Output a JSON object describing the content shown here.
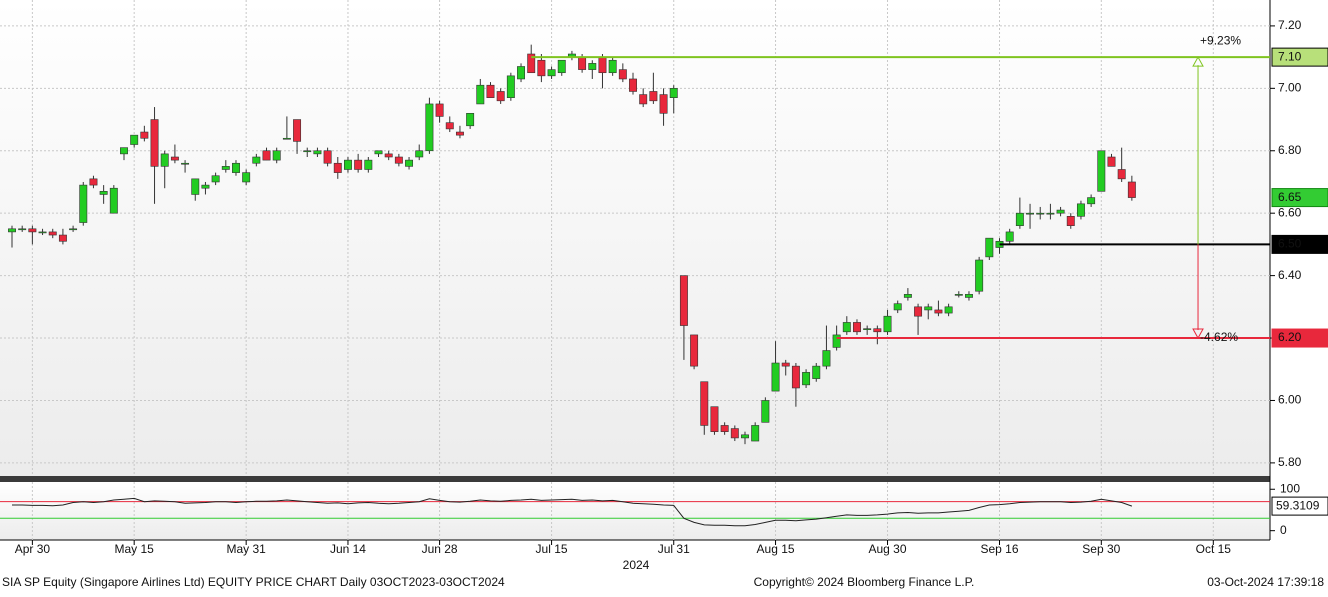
{
  "chart_data": {
    "type": "candlestick",
    "up_color": "#22cc22",
    "down_color": "#e8283c",
    "ylim": [
      5.758,
      7.283
    ],
    "yticks": [
      {
        "value": 5.8,
        "label": "5.80"
      },
      {
        "value": 6.0,
        "label": "6.00"
      },
      {
        "value": 6.2,
        "label": "6.20"
      },
      {
        "value": 6.4,
        "label": "6.40"
      },
      {
        "value": 6.6,
        "label": "6.60"
      },
      {
        "value": 6.8,
        "label": "6.80"
      },
      {
        "value": 7.0,
        "label": "7.00"
      },
      {
        "value": 7.2,
        "label": "7.20"
      }
    ],
    "xlim": [
      -1.18,
      123.57
    ],
    "xticks": [
      {
        "value": 2,
        "label": "Apr 30"
      },
      {
        "value": 12,
        "label": "May 15"
      },
      {
        "value": 23,
        "label": "May 31"
      },
      {
        "value": 33,
        "label": "Jun 14"
      },
      {
        "value": 42,
        "label": "Jun 28"
      },
      {
        "value": 53,
        "label": "Jul 15"
      },
      {
        "value": 65,
        "label": "Jul 31"
      },
      {
        "value": 75,
        "label": "Aug 15"
      },
      {
        "value": 86,
        "label": "Aug 30"
      },
      {
        "value": 97,
        "label": "Sep 16"
      },
      {
        "value": 107,
        "label": "Sep 30"
      },
      {
        "value": 118,
        "label": "Oct 15"
      }
    ],
    "year_label": "2024",
    "grid": true,
    "candles": [
      {
        "open": 6.54,
        "high": 6.56,
        "low": 6.49,
        "close": 6.55
      },
      {
        "open": 6.55,
        "high": 6.56,
        "low": 6.54,
        "close": 6.55
      },
      {
        "open": 6.55,
        "high": 6.56,
        "low": 6.5,
        "close": 6.54
      },
      {
        "open": 6.54,
        "high": 6.55,
        "low": 6.53,
        "close": 6.54
      },
      {
        "open": 6.54,
        "high": 6.55,
        "low": 6.52,
        "close": 6.53
      },
      {
        "open": 6.53,
        "high": 6.55,
        "low": 6.5,
        "close": 6.51
      },
      {
        "open": 6.55,
        "high": 6.56,
        "low": 6.54,
        "close": 6.55
      },
      {
        "open": 6.57,
        "high": 6.7,
        "low": 6.56,
        "close": 6.69
      },
      {
        "open": 6.71,
        "high": 6.72,
        "low": 6.68,
        "close": 6.69
      },
      {
        "open": 6.66,
        "high": 6.69,
        "low": 6.63,
        "close": 6.67
      },
      {
        "open": 6.6,
        "high": 6.69,
        "low": 6.6,
        "close": 6.68
      },
      {
        "open": 6.79,
        "high": 6.81,
        "low": 6.77,
        "close": 6.81
      },
      {
        "open": 6.82,
        "high": 6.85,
        "low": 6.81,
        "close": 6.85
      },
      {
        "open": 6.86,
        "high": 6.88,
        "low": 6.83,
        "close": 6.84
      },
      {
        "open": 6.9,
        "high": 6.94,
        "low": 6.63,
        "close": 6.75
      },
      {
        "open": 6.75,
        "high": 6.8,
        "low": 6.68,
        "close": 6.79
      },
      {
        "open": 6.78,
        "high": 6.82,
        "low": 6.76,
        "close": 6.77
      },
      {
        "open": 6.76,
        "high": 6.77,
        "low": 6.73,
        "close": 6.76
      },
      {
        "open": 6.66,
        "high": 6.71,
        "low": 6.64,
        "close": 6.71
      },
      {
        "open": 6.68,
        "high": 6.7,
        "low": 6.66,
        "close": 6.69
      },
      {
        "open": 6.7,
        "high": 6.73,
        "low": 6.69,
        "close": 6.72
      },
      {
        "open": 6.74,
        "high": 6.77,
        "low": 6.73,
        "close": 6.75
      },
      {
        "open": 6.73,
        "high": 6.77,
        "low": 6.72,
        "close": 6.76
      },
      {
        "open": 6.7,
        "high": 6.74,
        "low": 6.69,
        "close": 6.73
      },
      {
        "open": 6.76,
        "high": 6.79,
        "low": 6.75,
        "close": 6.78
      },
      {
        "open": 6.8,
        "high": 6.81,
        "low": 6.77,
        "close": 6.77
      },
      {
        "open": 6.77,
        "high": 6.81,
        "low": 6.76,
        "close": 6.8
      },
      {
        "open": 6.84,
        "high": 6.91,
        "low": 6.84,
        "close": 6.84
      },
      {
        "open": 6.9,
        "high": 6.9,
        "low": 6.79,
        "close": 6.83
      },
      {
        "open": 6.8,
        "high": 6.81,
        "low": 6.78,
        "close": 6.8
      },
      {
        "open": 6.79,
        "high": 6.81,
        "low": 6.78,
        "close": 6.8
      },
      {
        "open": 6.8,
        "high": 6.81,
        "low": 6.75,
        "close": 6.76
      },
      {
        "open": 6.76,
        "high": 6.78,
        "low": 6.71,
        "close": 6.73
      },
      {
        "open": 6.74,
        "high": 6.78,
        "low": 6.73,
        "close": 6.77
      },
      {
        "open": 6.77,
        "high": 6.79,
        "low": 6.73,
        "close": 6.74
      },
      {
        "open": 6.74,
        "high": 6.78,
        "low": 6.73,
        "close": 6.77
      },
      {
        "open": 6.79,
        "high": 6.8,
        "low": 6.78,
        "close": 6.8
      },
      {
        "open": 6.79,
        "high": 6.8,
        "low": 6.77,
        "close": 6.78
      },
      {
        "open": 6.78,
        "high": 6.79,
        "low": 6.75,
        "close": 6.76
      },
      {
        "open": 6.75,
        "high": 6.78,
        "low": 6.74,
        "close": 6.77
      },
      {
        "open": 6.78,
        "high": 6.82,
        "low": 6.77,
        "close": 6.8
      },
      {
        "open": 6.8,
        "high": 6.97,
        "low": 6.79,
        "close": 6.95
      },
      {
        "open": 6.95,
        "high": 6.96,
        "low": 6.89,
        "close": 6.91
      },
      {
        "open": 6.89,
        "high": 6.91,
        "low": 6.86,
        "close": 6.87
      },
      {
        "open": 6.86,
        "high": 6.88,
        "low": 6.84,
        "close": 6.85
      },
      {
        "open": 6.88,
        "high": 6.92,
        "low": 6.87,
        "close": 6.92
      },
      {
        "open": 6.95,
        "high": 7.03,
        "low": 6.95,
        "close": 7.01
      },
      {
        "open": 7.01,
        "high": 7.02,
        "low": 6.97,
        "close": 6.97
      },
      {
        "open": 6.99,
        "high": 7.0,
        "low": 6.95,
        "close": 6.96
      },
      {
        "open": 6.97,
        "high": 7.05,
        "low": 6.96,
        "close": 7.04
      },
      {
        "open": 7.03,
        "high": 7.08,
        "low": 7.02,
        "close": 7.07
      },
      {
        "open": 7.11,
        "high": 7.14,
        "low": 7.05,
        "close": 7.05
      },
      {
        "open": 7.09,
        "high": 7.11,
        "low": 7.02,
        "close": 7.04
      },
      {
        "open": 7.04,
        "high": 7.07,
        "low": 7.03,
        "close": 7.06
      },
      {
        "open": 7.05,
        "high": 7.09,
        "low": 7.04,
        "close": 7.09
      },
      {
        "open": 7.1,
        "high": 7.12,
        "low": 7.09,
        "close": 7.11
      },
      {
        "open": 7.1,
        "high": 7.11,
        "low": 7.05,
        "close": 7.06
      },
      {
        "open": 7.06,
        "high": 7.09,
        "low": 7.03,
        "close": 7.08
      },
      {
        "open": 7.1,
        "high": 7.11,
        "low": 7.0,
        "close": 7.05
      },
      {
        "open": 7.05,
        "high": 7.1,
        "low": 7.04,
        "close": 7.09
      },
      {
        "open": 7.06,
        "high": 7.08,
        "low": 7.02,
        "close": 7.03
      },
      {
        "open": 7.03,
        "high": 7.05,
        "low": 6.98,
        "close": 6.99
      },
      {
        "open": 6.98,
        "high": 7.0,
        "low": 6.94,
        "close": 6.95
      },
      {
        "open": 6.99,
        "high": 7.05,
        "low": 6.95,
        "close": 6.96
      },
      {
        "open": 6.98,
        "high": 7.0,
        "low": 6.88,
        "close": 6.92
      },
      {
        "open": 6.97,
        "high": 7.01,
        "low": 6.92,
        "close": 7.0
      },
      {
        "open": 6.4,
        "high": 6.4,
        "low": 6.13,
        "close": 6.24
      },
      {
        "open": 6.21,
        "high": 6.21,
        "low": 6.1,
        "close": 6.11
      },
      {
        "open": 6.06,
        "high": 6.06,
        "low": 5.89,
        "close": 5.92
      },
      {
        "open": 5.98,
        "high": 5.98,
        "low": 5.89,
        "close": 5.9
      },
      {
        "open": 5.92,
        "high": 5.93,
        "low": 5.89,
        "close": 5.9
      },
      {
        "open": 5.91,
        "high": 5.92,
        "low": 5.87,
        "close": 5.88
      },
      {
        "open": 5.88,
        "high": 5.9,
        "low": 5.86,
        "close": 5.89
      },
      {
        "open": 5.87,
        "high": 5.93,
        "low": 5.87,
        "close": 5.92
      },
      {
        "open": 5.93,
        "high": 6.01,
        "low": 5.93,
        "close": 6.0
      },
      {
        "open": 6.03,
        "high": 6.19,
        "low": 6.03,
        "close": 6.12
      },
      {
        "open": 6.12,
        "high": 6.13,
        "low": 6.08,
        "close": 6.11
      },
      {
        "open": 6.11,
        "high": 6.12,
        "low": 5.98,
        "close": 6.04
      },
      {
        "open": 6.05,
        "high": 6.1,
        "low": 6.04,
        "close": 6.09
      },
      {
        "open": 6.07,
        "high": 6.12,
        "low": 6.06,
        "close": 6.11
      },
      {
        "open": 6.11,
        "high": 6.24,
        "low": 6.1,
        "close": 6.16
      },
      {
        "open": 6.17,
        "high": 6.24,
        "low": 6.16,
        "close": 6.21
      },
      {
        "open": 6.22,
        "high": 6.27,
        "low": 6.21,
        "close": 6.25
      },
      {
        "open": 6.25,
        "high": 6.26,
        "low": 6.21,
        "close": 6.22
      },
      {
        "open": 6.23,
        "high": 6.24,
        "low": 6.21,
        "close": 6.23
      },
      {
        "open": 6.23,
        "high": 6.24,
        "low": 6.18,
        "close": 6.22
      },
      {
        "open": 6.22,
        "high": 6.29,
        "low": 6.21,
        "close": 6.27
      },
      {
        "open": 6.29,
        "high": 6.32,
        "low": 6.28,
        "close": 6.31
      },
      {
        "open": 6.33,
        "high": 6.36,
        "low": 6.32,
        "close": 6.34
      },
      {
        "open": 6.3,
        "high": 6.31,
        "low": 6.21,
        "close": 6.27
      },
      {
        "open": 6.29,
        "high": 6.31,
        "low": 6.26,
        "close": 6.3
      },
      {
        "open": 6.29,
        "high": 6.32,
        "low": 6.27,
        "close": 6.28
      },
      {
        "open": 6.28,
        "high": 6.31,
        "low": 6.27,
        "close": 6.3
      },
      {
        "open": 6.34,
        "high": 6.35,
        "low": 6.33,
        "close": 6.34
      },
      {
        "open": 6.33,
        "high": 6.35,
        "low": 6.32,
        "close": 6.34
      },
      {
        "open": 6.35,
        "high": 6.46,
        "low": 6.34,
        "close": 6.45
      },
      {
        "open": 6.46,
        "high": 6.52,
        "low": 6.45,
        "close": 6.52
      },
      {
        "open": 6.49,
        "high": 6.52,
        "low": 6.47,
        "close": 6.51
      },
      {
        "open": 6.51,
        "high": 6.55,
        "low": 6.5,
        "close": 6.54
      },
      {
        "open": 6.56,
        "high": 6.65,
        "low": 6.55,
        "close": 6.6
      },
      {
        "open": 6.6,
        "high": 6.63,
        "low": 6.55,
        "close": 6.6
      },
      {
        "open": 6.6,
        "high": 6.62,
        "low": 6.58,
        "close": 6.6
      },
      {
        "open": 6.6,
        "high": 6.63,
        "low": 6.58,
        "close": 6.6
      },
      {
        "open": 6.6,
        "high": 6.62,
        "low": 6.59,
        "close": 6.61
      },
      {
        "open": 6.59,
        "high": 6.6,
        "low": 6.55,
        "close": 6.56
      },
      {
        "open": 6.59,
        "high": 6.64,
        "low": 6.58,
        "close": 6.63
      },
      {
        "open": 6.63,
        "high": 6.66,
        "low": 6.62,
        "close": 6.65
      },
      {
        "open": 6.67,
        "high": 6.8,
        "low": 6.67,
        "close": 6.8
      },
      {
        "open": 6.78,
        "high": 6.79,
        "low": 6.75,
        "close": 6.75
      },
      {
        "open": 6.74,
        "high": 6.81,
        "low": 6.7,
        "close": 6.71
      },
      {
        "open": 6.7,
        "high": 6.72,
        "low": 6.64,
        "close": 6.65
      }
    ],
    "last_price_color": "#33cc33",
    "levels": [
      {
        "value": 7.1,
        "label": "7.10",
        "color": "#7fc41f"
      },
      {
        "value": 6.5,
        "label": "6.50",
        "color": "#000000"
      },
      {
        "value": 6.2,
        "label": "6.20",
        "color": "#e8283c"
      }
    ],
    "changes": [
      {
        "value": 9.23,
        "label": "+9.23%",
        "color": "#7fc41f"
      },
      {
        "value": -4.62,
        "label": "-4.62%",
        "color": "#e8283c"
      }
    ],
    "rsi": {
      "color": "#222222",
      "ylim": [
        -22.5,
        117.5
      ],
      "yticks": [
        0,
        100
      ],
      "levels": [
        {
          "value": 70,
          "color": "#e8283c"
        },
        {
          "value": 30,
          "color": "#33cc33"
        }
      ],
      "values": [
        62,
        62,
        61,
        61,
        60,
        62,
        68,
        70,
        68,
        70,
        74,
        76,
        78,
        70,
        72,
        71,
        70,
        66,
        67,
        68,
        70,
        70,
        68,
        70,
        71,
        71,
        72,
        74,
        72,
        70,
        68,
        66,
        67,
        65,
        67,
        68,
        66,
        65,
        66,
        68,
        70,
        77,
        73,
        70,
        69,
        71,
        74,
        72,
        71,
        73,
        74,
        76,
        73,
        74,
        75,
        76,
        73,
        74,
        72,
        73,
        70,
        66,
        65,
        64,
        62,
        61,
        30,
        20,
        14,
        13,
        13,
        12,
        12,
        15,
        20,
        25,
        25,
        24,
        26,
        28,
        31,
        35,
        38,
        37,
        37,
        38,
        40,
        43,
        44,
        42,
        43,
        43,
        45,
        47,
        49,
        56,
        62,
        63,
        65,
        68,
        69,
        70,
        70,
        70,
        68,
        69,
        71,
        76,
        72,
        68,
        59.3109
      ]
    },
    "footer": {
      "left": "SIA SP Equity (Singapore Airlines Ltd) EQUITY PRICE CHART  Daily 03OCT2023-03OCT2024",
      "center": "Copyright© 2024 Bloomberg Finance L.P.",
      "right": "03-Oct-2024 17:39:18"
    }
  }
}
